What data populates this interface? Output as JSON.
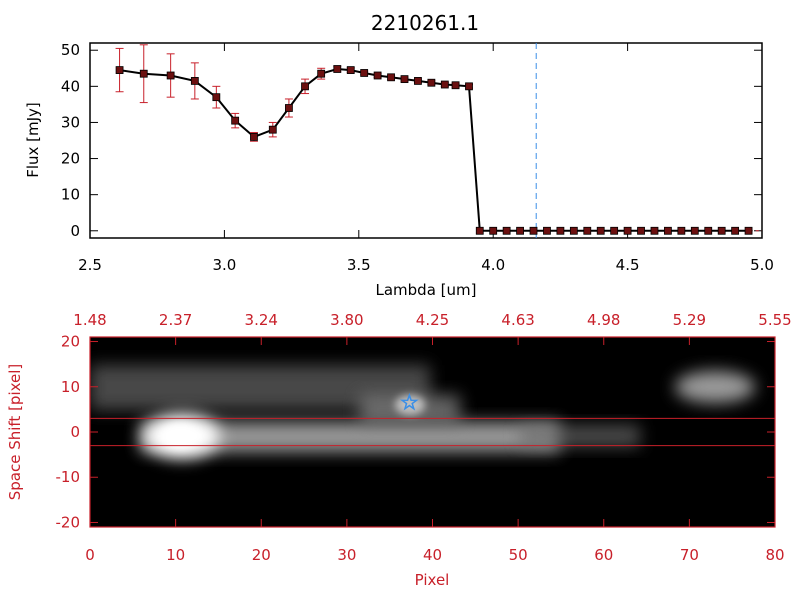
{
  "chart_data": [
    {
      "type": "line",
      "title": "2210261.1",
      "xlabel": "Lambda [um]",
      "ylabel": "Flux [mJy]",
      "xlim": [
        2.5,
        5.0
      ],
      "ylim": [
        -2,
        52
      ],
      "xticks": [
        "2.5",
        "3.0",
        "3.5",
        "4.0",
        "4.5",
        "5.0"
      ],
      "yticks": [
        "0",
        "10",
        "20",
        "30",
        "40",
        "50"
      ],
      "vline_x": 4.16,
      "series": [
        {
          "x": [
            2.61,
            2.7,
            2.8,
            2.89,
            2.97,
            3.04,
            3.11,
            3.18,
            3.24,
            3.3,
            3.36,
            3.42,
            3.47,
            3.52,
            3.57,
            3.62,
            3.67,
            3.72,
            3.77,
            3.82,
            3.86,
            3.91,
            3.95,
            4.0,
            4.05,
            4.1,
            4.15,
            4.2,
            4.25,
            4.3,
            4.35,
            4.4,
            4.45,
            4.5,
            4.55,
            4.6,
            4.65,
            4.7,
            4.75,
            4.8,
            4.85,
            4.9,
            4.95
          ],
          "y": [
            44.5,
            43.5,
            43.0,
            41.5,
            37.0,
            30.5,
            26.0,
            28.0,
            34.0,
            40.0,
            43.5,
            44.8,
            44.5,
            43.7,
            43.0,
            42.5,
            42.0,
            41.5,
            41.0,
            40.5,
            40.3,
            40.0,
            0,
            0,
            0,
            0,
            0,
            0,
            0,
            0,
            0,
            0,
            0,
            0,
            0,
            0,
            0,
            0,
            0,
            0,
            0,
            0,
            0
          ],
          "yerr": [
            6,
            8,
            6,
            5,
            3,
            2,
            1.2,
            2,
            2.5,
            2,
            1.5,
            0.8,
            0.6,
            0.5,
            0.5,
            0.5,
            0.5,
            0.5,
            0.5,
            0.5,
            0.5,
            0.5,
            0,
            0,
            0,
            0,
            0,
            0,
            0,
            0,
            0,
            0,
            0,
            0,
            0,
            0,
            0,
            0,
            0,
            0,
            0,
            0,
            0
          ]
        }
      ]
    },
    {
      "type": "heatmap",
      "xlabel": "Pixel",
      "ylabel": "Space Shift [pixel]",
      "xlim": [
        0,
        80
      ],
      "ylim": [
        -21,
        21
      ],
      "xticks": [
        "0",
        "10",
        "20",
        "30",
        "40",
        "50",
        "60",
        "70",
        "80"
      ],
      "yticks": [
        "-20",
        "-10",
        "0",
        "10",
        "20"
      ],
      "top_xticks": [
        "1.48",
        "2.37",
        "3.24",
        "3.80",
        "4.25",
        "4.63",
        "4.98",
        "5.29",
        "5.55"
      ],
      "hlines_y": [
        3,
        -3
      ],
      "marker": {
        "x": 37.3,
        "y": 6.5,
        "symbol": "star-icon"
      },
      "colors": {
        "accent": "#c8202a",
        "marker": "#3a8ee6",
        "vline": "#3a8ee6"
      }
    }
  ]
}
